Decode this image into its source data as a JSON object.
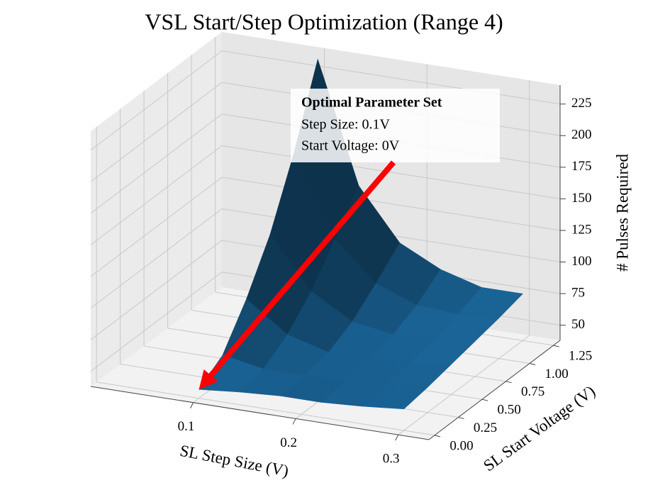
{
  "chart_data": {
    "type": "surface3d",
    "title": "VSL Start/Step Optimization (Range 4)",
    "xlabel": "SL Step Size (V)",
    "ylabel": "SL Start Voltage (V)",
    "zlabel": "# Pulses Required",
    "x": [
      0.1,
      0.14,
      0.18,
      0.22,
      0.26,
      0.3
    ],
    "y": [
      0,
      0.25,
      0.5,
      0.75,
      1.0,
      1.25
    ],
    "z": [
      [
        45,
        58,
        88,
        125,
        175,
        235
      ],
      [
        48,
        52,
        65,
        85,
        112,
        140
      ],
      [
        50,
        52,
        56,
        66,
        82,
        100
      ],
      [
        50,
        53,
        56,
        61,
        70,
        84
      ],
      [
        52,
        55,
        58,
        62,
        68,
        75
      ],
      [
        55,
        58,
        62,
        66,
        70,
        75
      ]
    ],
    "color": "#1f77b4",
    "xlim": [
      0.0,
      0.33
    ],
    "ylim": [
      -0.06,
      1.32
    ],
    "zlim": [
      38,
      240
    ],
    "xticks": [
      0.1,
      0.2,
      0.3
    ],
    "yticks": [
      {
        "value": 0,
        "label": "0.00"
      },
      0.25,
      {
        "value": 0.5,
        "label": "0.50"
      },
      0.75,
      {
        "value": 1.0,
        "label": "1.00"
      },
      1.25
    ],
    "zticks": [
      50,
      75,
      100,
      125,
      150,
      175,
      200,
      225
    ],
    "grid": true,
    "annotation": {
      "title": "Optimal Parameter Set",
      "lines": [
        "Step Size: 0.1V",
        "Start Voltage: 0V"
      ],
      "color": "#ff0000"
    }
  }
}
